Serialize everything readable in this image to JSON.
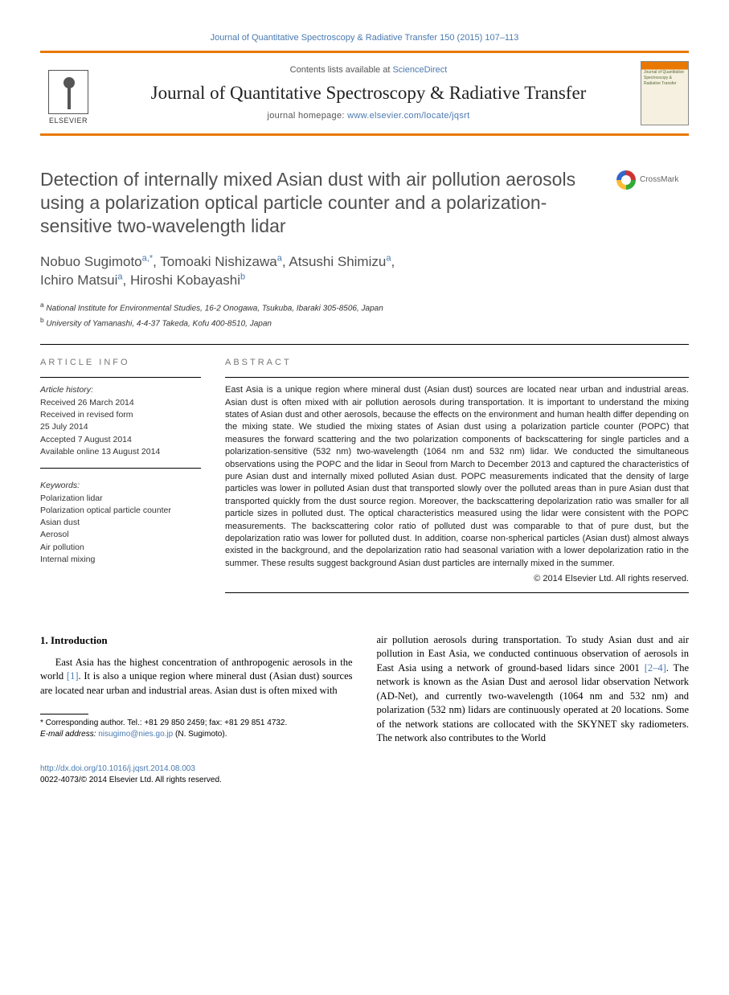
{
  "journal_ref": {
    "prefix": "Journal of Quantitative Spectroscopy & Radiative Transfer 150 (2015) 107–113"
  },
  "masthead": {
    "contents_prefix": "Contents lists available at ",
    "contents_link": "ScienceDirect",
    "journal_title": "Journal of Quantitative Spectroscopy & Radiative Transfer",
    "homepage_prefix": "journal homepage: ",
    "homepage_link": "www.elsevier.com/locate/jqsrt",
    "elsevier": "ELSEVIER",
    "cover_text": "Journal of Quantitative Spectroscopy & Radiative Transfer"
  },
  "title": "Detection of internally mixed Asian dust with air pollution aerosols using a polarization optical particle counter and a polarization-sensitive two-wavelength lidar",
  "crossmark": "CrossMark",
  "authors_html": "Nobuo Sugimoto",
  "authors": [
    {
      "name": "Nobuo Sugimoto",
      "aff": "a,",
      "corr": "*"
    },
    {
      "name": "Tomoaki Nishizawa",
      "aff": "a"
    },
    {
      "name": "Atsushi Shimizu",
      "aff": "a"
    },
    {
      "name": "Ichiro Matsui",
      "aff": "a"
    },
    {
      "name": "Hiroshi Kobayashi",
      "aff": "b"
    }
  ],
  "affiliations": [
    {
      "sup": "a",
      "text": " National Institute for Environmental Studies, 16-2 Onogawa, Tsukuba, Ibaraki 305-8506, Japan"
    },
    {
      "sup": "b",
      "text": " University of Yamanashi, 4-4-37 Takeda, Kofu 400-8510, Japan"
    }
  ],
  "info": {
    "heading": "ARTICLE INFO",
    "history_label": "Article history:",
    "history": [
      "Received 26 March 2014",
      "Received in revised form",
      "25 July 2014",
      "Accepted 7 August 2014",
      "Available online 13 August 2014"
    ],
    "keywords_label": "Keywords:",
    "keywords": [
      "Polarization lidar",
      "Polarization optical particle counter",
      "Asian dust",
      "Aerosol",
      "Air pollution",
      "Internal mixing"
    ]
  },
  "abstract": {
    "heading": "ABSTRACT",
    "text": "East Asia is a unique region where mineral dust (Asian dust) sources are located near urban and industrial areas. Asian dust is often mixed with air pollution aerosols during transportation. It is important to understand the mixing states of Asian dust and other aerosols, because the effects on the environment and human health differ depending on the mixing state. We studied the mixing states of Asian dust using a polarization particle counter (POPC) that measures the forward scattering and the two polarization components of backscattering for single particles and a polarization-sensitive (532 nm) two-wavelength (1064 nm and 532 nm) lidar. We conducted the simultaneous observations using the POPC and the lidar in Seoul from March to December 2013 and captured the characteristics of pure Asian dust and internally mixed polluted Asian dust. POPC measurements indicated that the density of large particles was lower in polluted Asian dust that transported slowly over the polluted areas than in pure Asian dust that transported quickly from the dust source region. Moreover, the backscattering depolarization ratio was smaller for all particle sizes in polluted dust. The optical characteristics measured using the lidar were consistent with the POPC measurements. The backscattering color ratio of polluted dust was comparable to that of pure dust, but the depolarization ratio was lower for polluted dust. In addition, coarse non-spherical particles (Asian dust) almost always existed in the background, and the depolarization ratio had seasonal variation with a lower depolarization ratio in the summer. These results suggest background Asian dust particles are internally mixed in the summer.",
    "copyright": "© 2014 Elsevier Ltd. All rights reserved."
  },
  "body": {
    "section_heading": "1.  Introduction",
    "para1_pre": "East Asia has the highest concentration of anthropogenic aerosols in the world ",
    "ref1": "[1]",
    "para1_post": ". It is also a unique region where mineral dust (Asian dust) sources are located near urban and industrial areas. Asian dust is often mixed with",
    "para2_pre": "air pollution aerosols during transportation. To study Asian dust and air pollution in East Asia, we conducted continuous observation of aerosols in East Asia using a network of ground-based lidars since 2001 ",
    "ref2": "[2–4]",
    "para2_post": ". The network is known as the Asian Dust and aerosol lidar observation Network (AD-Net), and currently two-wavelength (1064 nm and 532 nm) and polarization (532 nm) lidars are continuously operated at 20 locations. Some of the network stations are collocated with the SKYNET sky radiometers. The network also contributes to the World"
  },
  "footnote": {
    "corr_prefix": "* Corresponding author. Tel.: +81 29 850 2459; fax: +81 29 851 4732.",
    "email_label": "E-mail address: ",
    "email": "nisugimo@nies.go.jp",
    "email_suffix": " (N. Sugimoto)."
  },
  "footer": {
    "doi": "http://dx.doi.org/10.1016/j.jqsrt.2014.08.003",
    "issn_line": "0022-4073/© 2014 Elsevier Ltd. All rights reserved."
  },
  "colors": {
    "orange": "#e87800",
    "link": "#4a7ab0",
    "title_gray": "#505050",
    "muted": "#777777"
  }
}
